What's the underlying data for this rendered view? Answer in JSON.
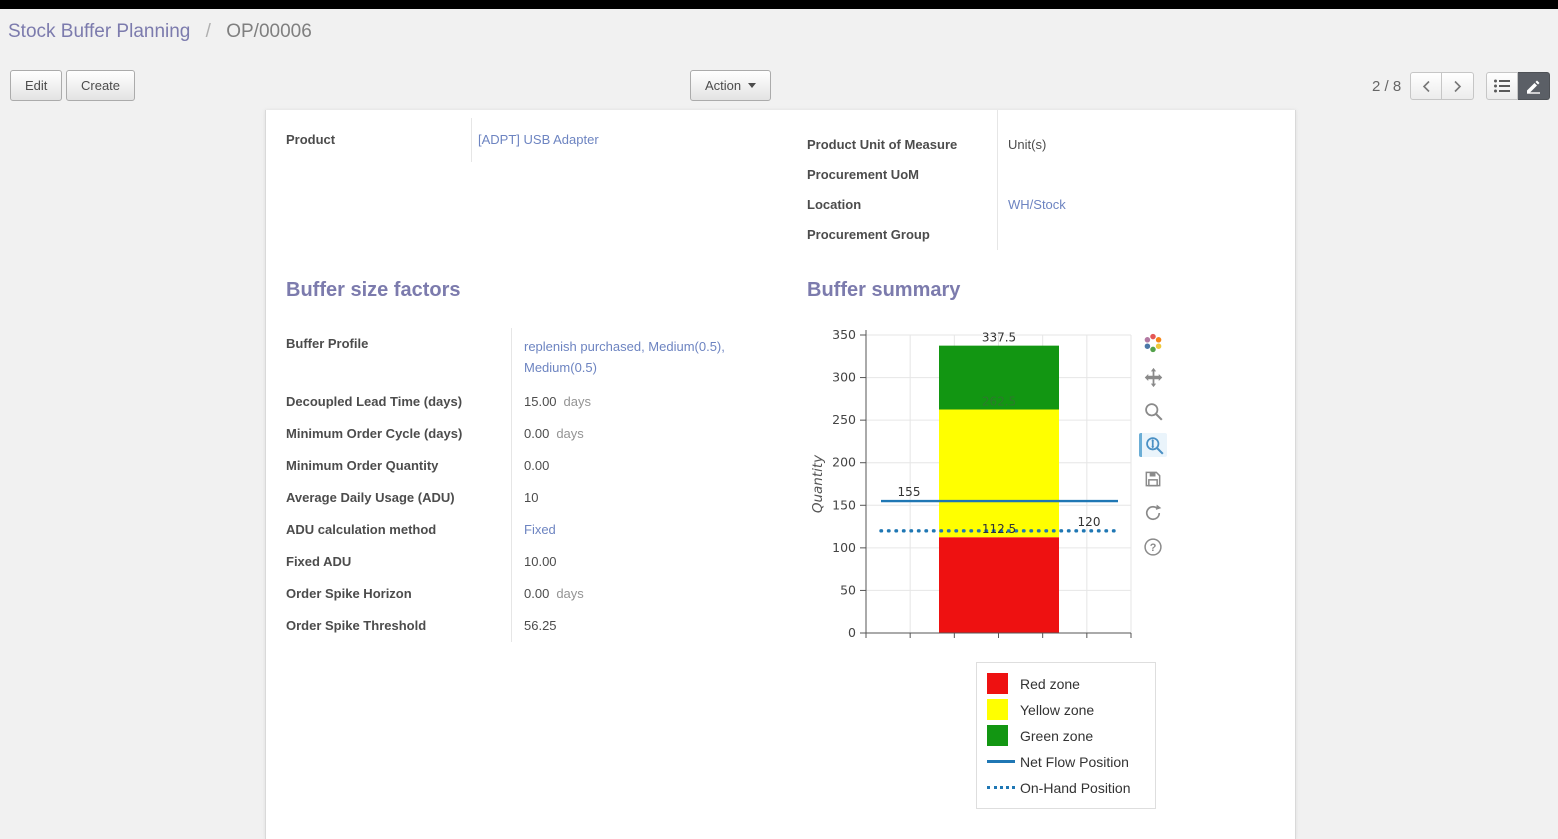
{
  "breadcrumb": {
    "parent": "Stock Buffer Planning",
    "separator": "/",
    "current": "OP/00006"
  },
  "toolbar": {
    "edit": "Edit",
    "create": "Create",
    "action": "Action",
    "pager": "2 / 8"
  },
  "sheet": {
    "left_fields": [
      {
        "label": "Product",
        "value": "[ADPT] USB Adapter"
      }
    ],
    "right_fields": [
      {
        "label": "Product Unit of Measure",
        "value": "Unit(s)"
      },
      {
        "label": "Procurement UoM",
        "value": ""
      },
      {
        "label": "Location",
        "value": "WH/Stock"
      },
      {
        "label": "Procurement Group",
        "value": ""
      }
    ],
    "buffer_factors": {
      "title": "Buffer size factors",
      "fields": [
        {
          "label": "Buffer Profile",
          "value": "replenish purchased, Medium(0.5), Medium(0.5)"
        },
        {
          "label": "Decoupled Lead Time (days)",
          "value": "15.00",
          "suffix": "days"
        },
        {
          "label": "Minimum Order Cycle (days)",
          "value": "0.00",
          "suffix": "days"
        },
        {
          "label": "Minimum Order Quantity",
          "value": "0.00",
          "suffix": ""
        },
        {
          "label": "Average Daily Usage (ADU)",
          "value": "10",
          "suffix": ""
        },
        {
          "label": "ADU calculation method",
          "value": "Fixed",
          "suffix": ""
        },
        {
          "label": "Fixed ADU",
          "value": "10.00",
          "suffix": ""
        },
        {
          "label": "Order Spike Horizon",
          "value": "0.00",
          "suffix": "days"
        },
        {
          "label": "Order Spike Threshold",
          "value": "56.25",
          "suffix": ""
        }
      ]
    },
    "buffer_summary": {
      "title": "Buffer summary"
    }
  },
  "chart_data": {
    "type": "bar",
    "title": "",
    "xlabel": "",
    "ylabel": "Quantity",
    "ylim": [
      0,
      350
    ],
    "yticks": [
      0,
      50,
      100,
      150,
      200,
      250,
      300,
      350
    ],
    "grid": true,
    "zones": [
      {
        "name": "Red zone",
        "from": 0,
        "to": 112.5,
        "color": "#ee1111"
      },
      {
        "name": "Yellow zone",
        "from": 112.5,
        "to": 262.5,
        "color": "#ffff00"
      },
      {
        "name": "Green zone",
        "from": 262.5,
        "to": 337.5,
        "color": "#129612"
      }
    ],
    "boundary_labels": [
      {
        "value": 337.5,
        "color": "#333333"
      },
      {
        "value": 262.5,
        "color": "#2d7a2d"
      },
      {
        "value": 112.5,
        "color": "#333333"
      }
    ],
    "lines": [
      {
        "name": "Net Flow Position",
        "value": 155,
        "style": "solid",
        "color": "#1f77b4",
        "label_side": "left"
      },
      {
        "name": "On-Hand Position",
        "value": 120,
        "style": "dotted",
        "color": "#1f77b4",
        "label_side": "right"
      }
    ],
    "legend_position": "bottom-right",
    "legend": [
      {
        "label": "Red zone",
        "swatch": "square",
        "color": "#ee1111"
      },
      {
        "label": "Yellow zone",
        "swatch": "square",
        "color": "#ffff00"
      },
      {
        "label": "Green zone",
        "swatch": "square",
        "color": "#129612"
      },
      {
        "label": "Net Flow Position",
        "swatch": "line",
        "color": "#1f77b4"
      },
      {
        "label": "On-Hand Position",
        "swatch": "dotted",
        "color": "#1f77b4"
      }
    ]
  },
  "chart_toolbar": {
    "icons": [
      "bokeh-logo",
      "pan",
      "box-zoom",
      "wheel-zoom",
      "save",
      "refresh",
      "help"
    ],
    "active_tool": "wheel-zoom"
  },
  "colors": {
    "accent": "#7c7bad",
    "link": "#6d84c1",
    "net_flow": "#1f77b4"
  }
}
